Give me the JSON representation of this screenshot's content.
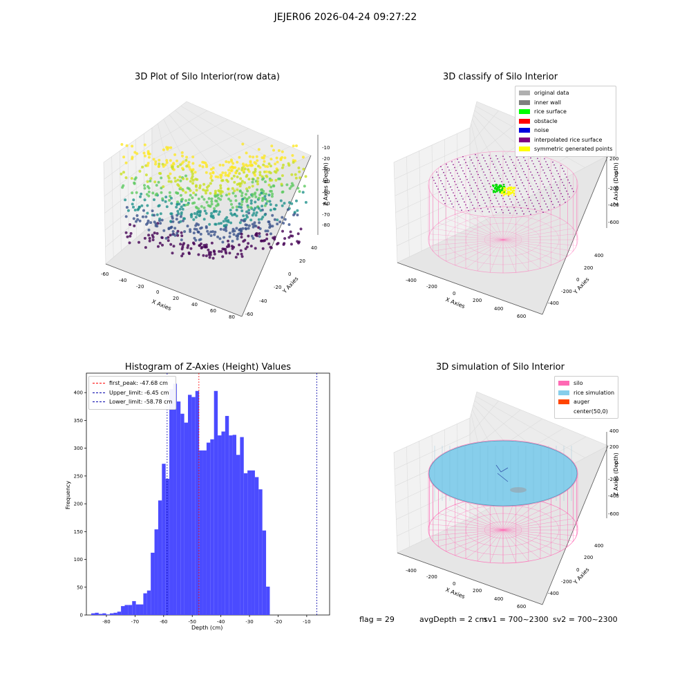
{
  "suptitle": "JEJER06 2026-04-24 09:27:22",
  "footer": {
    "flag": "flag = 29",
    "avg_depth": "avgDepth = 2 cm",
    "sv1": "sv1 = 700~2300",
    "sv2": "sv2 = 700~2300"
  },
  "chart_data": [
    {
      "type": "scatter",
      "title": "3D Plot of Silo Interior(row data)",
      "xlabel": "X Axies",
      "ylabel": "Y Axies",
      "zlabel": "Z Axies (Depth)",
      "x_ticks": [
        -60,
        -40,
        -20,
        0,
        20,
        40,
        60,
        80
      ],
      "y_ticks": [
        -60,
        -40,
        -20,
        0,
        20,
        40
      ],
      "z_ticks": [
        -10,
        -20,
        -30,
        -40,
        -50,
        -60,
        -70,
        -80
      ],
      "colormap": "viridis"
    },
    {
      "type": "scatter",
      "title": "3D classify of Silo Interior",
      "xlabel": "X Axies",
      "ylabel": "Y Axies",
      "zlabel": "Z Axies (Depth)",
      "x_ticks": [
        -400,
        -200,
        0,
        200,
        400,
        600
      ],
      "y_ticks": [
        -400,
        -200,
        0,
        200,
        400
      ],
      "z_ticks": [
        200,
        0,
        -200,
        -400,
        -600
      ],
      "legend": [
        {
          "label": "original data",
          "color": "#b0b0b0"
        },
        {
          "label": "inner wall",
          "color": "#808080"
        },
        {
          "label": "rice surface",
          "color": "#00ff00"
        },
        {
          "label": "obstacle",
          "color": "#ff0000"
        },
        {
          "label": "noise",
          "color": "#0000dd"
        },
        {
          "label": "interpolated rice surface",
          "color": "#800080"
        },
        {
          "label": "symmetric generated points",
          "color": "#ffff00"
        }
      ]
    },
    {
      "type": "bar",
      "title": "Histogram of Z-Axies (Height) Values",
      "xlabel": "Depth (cm)",
      "ylabel": "Frequency",
      "bar_color": "#4b4bff",
      "bin_start": -85.3,
      "bin_width": 1.3,
      "values": [
        3,
        4,
        2,
        3,
        1,
        3,
        4,
        6,
        16,
        18,
        18,
        25,
        19,
        19,
        39,
        44,
        112,
        154,
        206,
        272,
        245,
        406,
        416,
        384,
        362,
        346,
        396,
        392,
        403,
        296,
        296,
        310,
        316,
        403,
        323,
        330,
        358,
        323,
        324,
        288,
        320,
        255,
        260,
        260,
        248,
        226,
        152,
        51
      ],
      "xlim": [
        -87,
        -2
      ],
      "ylim": [
        0,
        435
      ],
      "x_ticks": [
        -80,
        -70,
        -60,
        -50,
        -40,
        -30,
        -20,
        -10
      ],
      "y_ticks": [
        0,
        50,
        100,
        150,
        200,
        250,
        300,
        350,
        400
      ],
      "lines": [
        {
          "label": "first_peak: -47.68 cm",
          "x": -47.68,
          "color": "#ff0000"
        },
        {
          "label": "Upper_limit: -6.45 cm",
          "x": -6.45,
          "color": "#0000aa"
        },
        {
          "label": "Lower_limit: -58.78 cm",
          "x": -58.78,
          "color": "#0000aa"
        }
      ]
    },
    {
      "type": "scatter",
      "title": "3D simulation of Silo Interior",
      "xlabel": "X Axies",
      "ylabel": "Y Axies",
      "zlabel": "Z Axies (Depth)",
      "x_ticks": [
        -400,
        -200,
        0,
        200,
        400,
        600
      ],
      "y_ticks": [
        -400,
        -200,
        0,
        200,
        400
      ],
      "z_ticks": [
        400,
        200,
        0,
        -200,
        -400,
        -600
      ],
      "legend": [
        {
          "label": "silo",
          "color": "#ff69b4"
        },
        {
          "label": "rice simulation",
          "color": "#87ceeb"
        },
        {
          "label": "auger",
          "color": "#ff4500"
        },
        {
          "label": "center(50,0)",
          "color": "#ffffff"
        }
      ]
    }
  ]
}
